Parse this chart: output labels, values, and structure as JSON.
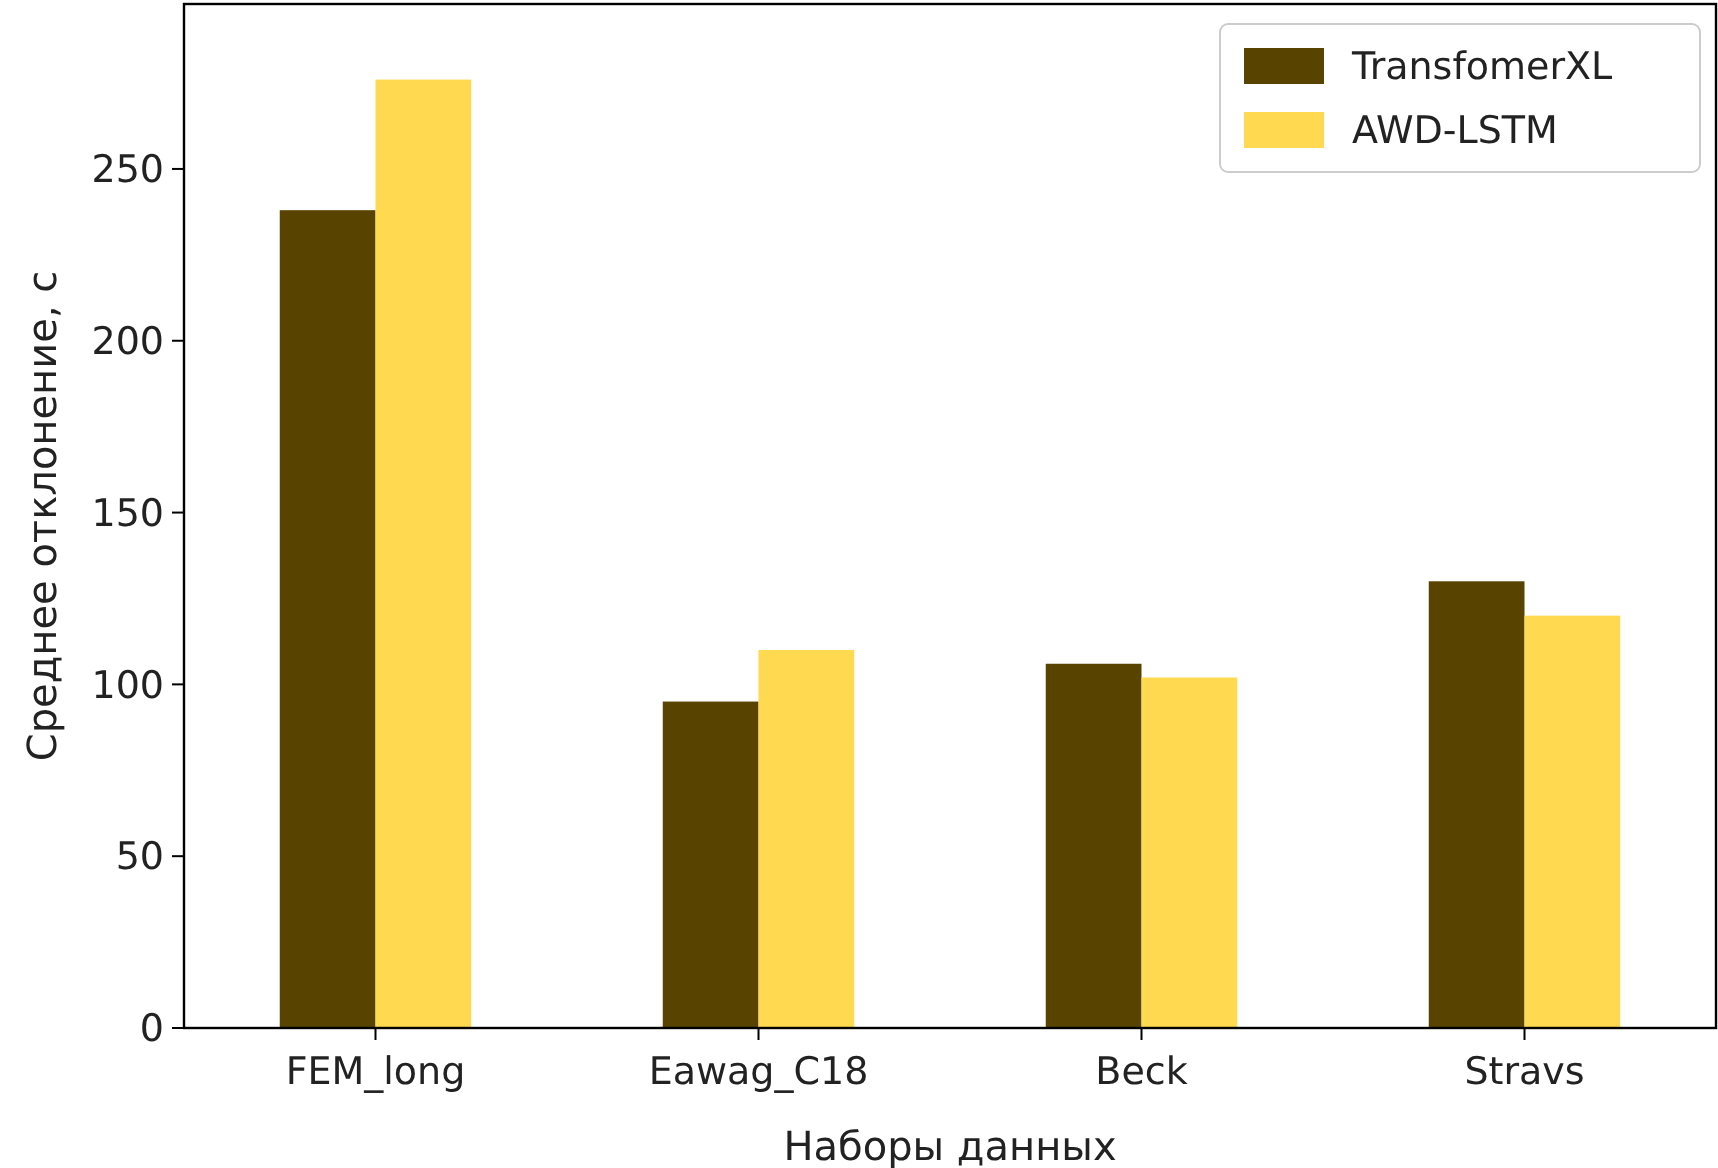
{
  "chart_data": {
    "type": "bar",
    "xlabel": "Наборы данных",
    "ylabel": "Среднее отклонение, с",
    "categories": [
      "FEM_long",
      "Eawag_C18",
      "Beck",
      "Stravs"
    ],
    "series": [
      {
        "name": "TransfomerXL",
        "color": "#584400",
        "values": [
          238,
          95,
          106,
          130
        ]
      },
      {
        "name": "AWD-LSTM",
        "color": "#ffd94f",
        "values": [
          276,
          110,
          102,
          120
        ]
      }
    ],
    "ylim": [
      0,
      298
    ],
    "yticks": [
      0,
      50,
      100,
      150,
      200,
      250
    ],
    "grid": false,
    "legend": "top right"
  }
}
